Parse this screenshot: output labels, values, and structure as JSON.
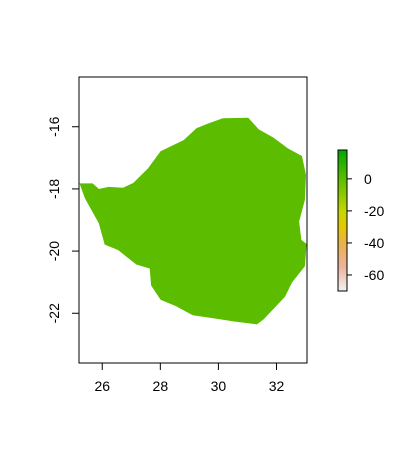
{
  "map": {
    "x_axis": {
      "range": [
        25.2,
        33.05
      ],
      "ticks": [
        26,
        28,
        30,
        32
      ],
      "tick_labels": [
        "26",
        "28",
        "30",
        "32"
      ]
    },
    "y_axis": {
      "range": [
        -23.6,
        -14.4
      ],
      "ticks": [
        -16,
        -18,
        -20,
        -22
      ],
      "tick_labels": [
        "-16",
        "-18",
        "-20",
        "-22"
      ]
    },
    "region": {
      "fill_color": "#5cbd00",
      "outline_lonlat": [
        [
          25.24,
          -17.84
        ],
        [
          25.66,
          -17.84
        ],
        [
          25.88,
          -18.02
        ],
        [
          26.22,
          -17.95
        ],
        [
          26.72,
          -17.98
        ],
        [
          27.08,
          -17.82
        ],
        [
          27.58,
          -17.36
        ],
        [
          28.02,
          -16.8
        ],
        [
          28.82,
          -16.44
        ],
        [
          29.26,
          -16.06
        ],
        [
          29.62,
          -15.92
        ],
        [
          30.15,
          -15.74
        ],
        [
          31.02,
          -15.73
        ],
        [
          31.38,
          -16.1
        ],
        [
          31.88,
          -16.36
        ],
        [
          32.4,
          -16.72
        ],
        [
          32.86,
          -16.95
        ],
        [
          33.0,
          -17.55
        ],
        [
          32.96,
          -18.35
        ],
        [
          32.76,
          -19.05
        ],
        [
          32.84,
          -19.65
        ],
        [
          33.02,
          -19.78
        ],
        [
          32.96,
          -20.48
        ],
        [
          32.52,
          -21.0
        ],
        [
          32.28,
          -21.46
        ],
        [
          31.55,
          -22.18
        ],
        [
          31.32,
          -22.34
        ],
        [
          30.55,
          -22.25
        ],
        [
          29.85,
          -22.15
        ],
        [
          29.12,
          -22.05
        ],
        [
          28.55,
          -21.76
        ],
        [
          28.02,
          -21.55
        ],
        [
          27.7,
          -21.1
        ],
        [
          27.65,
          -20.55
        ],
        [
          27.18,
          -20.42
        ],
        [
          26.55,
          -19.95
        ],
        [
          26.1,
          -19.78
        ],
        [
          25.9,
          -19.1
        ],
        [
          25.42,
          -18.3
        ]
      ]
    },
    "legend": {
      "ticks": [
        0,
        -20,
        -40,
        -60
      ],
      "tick_labels": [
        "0",
        "-20",
        "-40",
        "-60"
      ],
      "range": [
        -70,
        18
      ],
      "color_stops": [
        {
          "value": 18,
          "color": "#00a600"
        },
        {
          "value": 0,
          "color": "#5cbd00"
        },
        {
          "value": -20,
          "color": "#c3d600"
        },
        {
          "value": -30,
          "color": "#e6c800"
        },
        {
          "value": -40,
          "color": "#e8b24a"
        },
        {
          "value": -55,
          "color": "#ecb39e"
        },
        {
          "value": -70,
          "color": "#f2f2f2"
        }
      ]
    }
  }
}
